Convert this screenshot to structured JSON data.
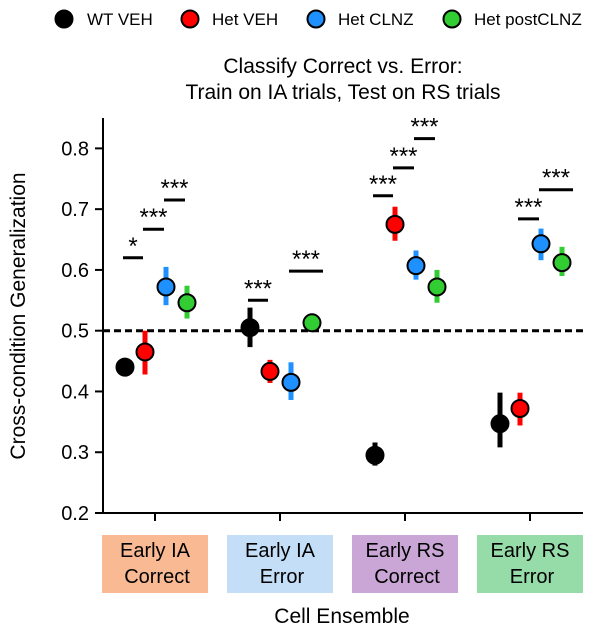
{
  "chart_data": {
    "type": "scatter",
    "title_line1": "Classify Correct vs. Error:",
    "title_line2": "Train on IA trials, Test on RS trials",
    "xlabel": "Cell Ensemble",
    "ylabel": "Cross-condition Generalization",
    "ylim": [
      0.2,
      0.85
    ],
    "yticks": [
      "0.2",
      "0.3",
      "0.4",
      "0.5",
      "0.6",
      "0.7",
      "0.8"
    ],
    "chance_level": 0.5,
    "legend_position": "top",
    "categories": [
      {
        "line1": "Early IA",
        "line2": "Correct",
        "color": "#f9b993"
      },
      {
        "line1": "Early IA",
        "line2": "Error",
        "color": "#c4def7"
      },
      {
        "line1": "Early RS",
        "line2": "Correct",
        "color": "#c9a6d6"
      },
      {
        "line1": "Early RS",
        "line2": "Error",
        "color": "#96dca8"
      }
    ],
    "series": [
      {
        "name": "WT VEH",
        "color": "#000000",
        "values": [
          0.44,
          0.505,
          0.295,
          0.347
        ],
        "err_low": [
          0.435,
          0.473,
          0.278,
          0.308
        ],
        "err_high": [
          0.445,
          0.538,
          0.316,
          0.398
        ]
      },
      {
        "name": "Het VEH",
        "color": "#ff0000",
        "values": [
          0.465,
          0.433,
          0.675,
          0.372
        ],
        "err_low": [
          0.428,
          0.414,
          0.648,
          0.344
        ],
        "err_high": [
          0.5,
          0.452,
          0.704,
          0.398
        ]
      },
      {
        "name": "Het CLNZ",
        "color": "#1e90ff",
        "values": [
          0.572,
          0.415,
          0.607,
          0.643
        ],
        "err_low": [
          0.542,
          0.386,
          0.584,
          0.616
        ],
        "err_high": [
          0.605,
          0.448,
          0.632,
          0.668
        ]
      },
      {
        "name": "Het postCLNZ",
        "color": "#32cd32",
        "values": [
          0.546,
          0.513,
          0.572,
          0.612
        ],
        "err_low": [
          0.52,
          0.505,
          0.546,
          0.59
        ],
        "err_high": [
          0.574,
          0.52,
          0.6,
          0.638
        ]
      }
    ],
    "significance": [
      {
        "category": 0,
        "from": 0,
        "to": 1,
        "y": 0.62,
        "label": "*"
      },
      {
        "category": 0,
        "from": 1,
        "to": 2,
        "y": 0.667,
        "label": "***"
      },
      {
        "category": 0,
        "from": 2,
        "to": 3,
        "y": 0.715,
        "label": "***"
      },
      {
        "category": 1,
        "from": 0,
        "to": 1,
        "y": 0.55,
        "label": "***"
      },
      {
        "category": 1,
        "from": 2,
        "to": 4,
        "y": 0.598,
        "label": "***"
      },
      {
        "category": 2,
        "from": 0,
        "to": 1,
        "y": 0.722,
        "label": "***"
      },
      {
        "category": 2,
        "from": 1,
        "to": 2,
        "y": 0.768,
        "label": "***"
      },
      {
        "category": 2,
        "from": 2,
        "to": 3,
        "y": 0.816,
        "label": "***"
      },
      {
        "category": 3,
        "from": 1,
        "to": 2,
        "y": 0.684,
        "label": "***"
      },
      {
        "category": 3,
        "from": 2,
        "to": 4,
        "y": 0.732,
        "label": "***"
      }
    ]
  }
}
